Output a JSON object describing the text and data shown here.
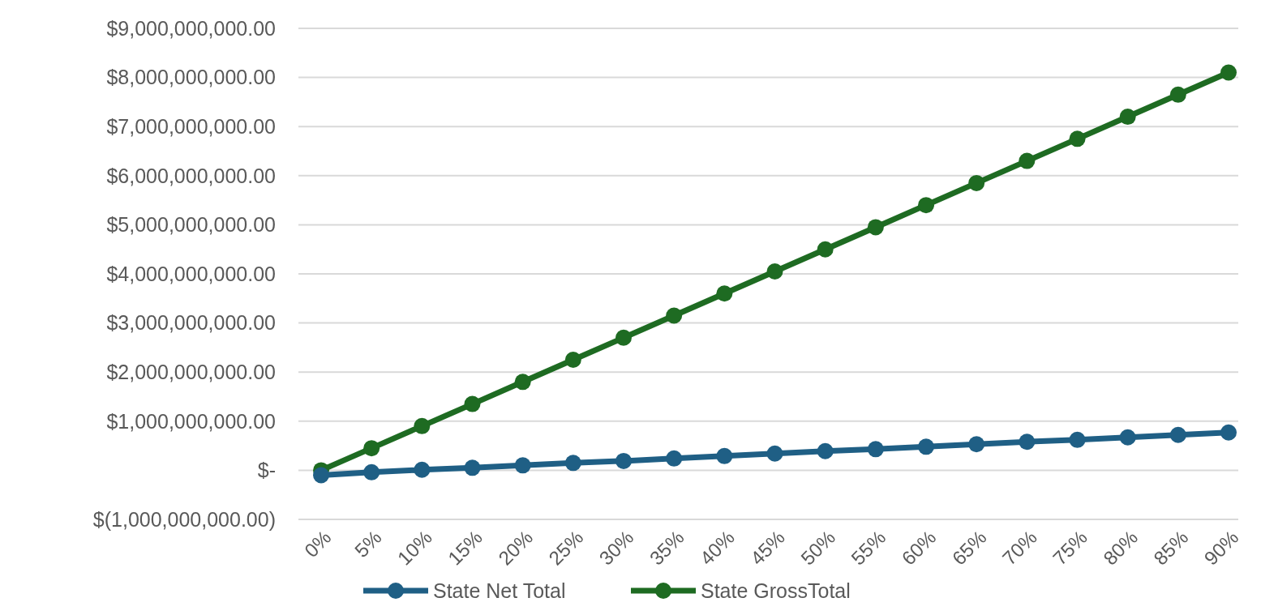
{
  "chart_data": {
    "type": "line",
    "categories": [
      "0%",
      "5%",
      "10%",
      "15%",
      "20%",
      "25%",
      "30%",
      "35%",
      "40%",
      "45%",
      "50%",
      "55%",
      "60%",
      "65%",
      "70%",
      "75%",
      "80%",
      "85%",
      "90%"
    ],
    "series": [
      {
        "name": "State Net Total",
        "color": "#1f5f85",
        "values": [
          -100000000,
          -40000000,
          10000000,
          50000000,
          100000000,
          150000000,
          190000000,
          240000000,
          290000000,
          340000000,
          390000000,
          430000000,
          480000000,
          530000000,
          580000000,
          620000000,
          670000000,
          720000000,
          770000000
        ]
      },
      {
        "name": "State GrossTotal",
        "color": "#1e6b22",
        "values": [
          0,
          450000000,
          900000000,
          1350000000,
          1800000000,
          2250000000,
          2700000000,
          3150000000,
          3600000000,
          4050000000,
          4500000000,
          4950000000,
          5400000000,
          5850000000,
          6300000000,
          6750000000,
          7200000000,
          7650000000,
          8100000000
        ]
      }
    ],
    "ylim": [
      -1000000000,
      9000000000
    ],
    "yticks": [
      {
        "value": -1000000000,
        "label": "$(1,000,000,000.00)"
      },
      {
        "value": 0,
        "label": "$-"
      },
      {
        "value": 1000000000,
        "label": "$1,000,000,000.00"
      },
      {
        "value": 2000000000,
        "label": "$2,000,000,000.00"
      },
      {
        "value": 3000000000,
        "label": "$3,000,000,000.00"
      },
      {
        "value": 4000000000,
        "label": "$4,000,000,000.00"
      },
      {
        "value": 5000000000,
        "label": "$5,000,000,000.00"
      },
      {
        "value": 6000000000,
        "label": "$6,000,000,000.00"
      },
      {
        "value": 7000000000,
        "label": "$7,000,000,000.00"
      },
      {
        "value": 8000000000,
        "label": "$8,000,000,000.00"
      },
      {
        "value": 9000000000,
        "label": "$9,000,000,000.00"
      }
    ],
    "grid": "y",
    "legend": "bottom",
    "marker": "circle",
    "line_style": "solid"
  }
}
